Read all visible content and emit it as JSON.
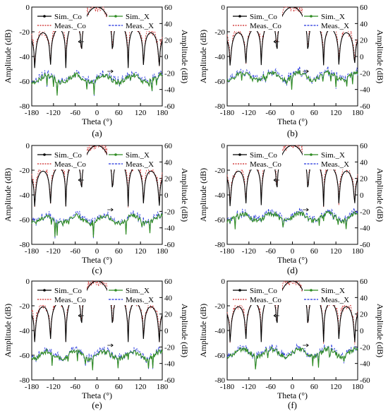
{
  "chart_data": [
    {
      "panel": "(a)",
      "type": "line",
      "xlabel": "Theta (°)",
      "ylabel_left": "Amplitude (dB)",
      "ylabel_right": "Amplitude (dB)",
      "xlim": [
        -180,
        180
      ],
      "xticks": [
        -180,
        -120,
        -60,
        0,
        60,
        120,
        180
      ],
      "ylim_left": [
        -80,
        0
      ],
      "yticks_left": [
        0,
        -20,
        -40,
        -60,
        -80
      ],
      "ylim_right": [
        -60,
        60
      ],
      "yticks_right": [
        60,
        40,
        20,
        0,
        -20,
        -40,
        -60
      ],
      "legend_left": [
        "Sim._Co",
        "Meas._Co"
      ],
      "legend_right": [
        "Sim._X",
        "Meas._X"
      ],
      "sidelobe": -38,
      "cross": -58
    },
    {
      "panel": "(b)",
      "type": "line",
      "xlabel": "Theta (°)",
      "ylabel_left": "Amplitude (dB)",
      "ylabel_right": "Amplitude (dB)",
      "xlim": [
        -180,
        180
      ],
      "xticks": [
        -180,
        -120,
        -60,
        0,
        60,
        120,
        180
      ],
      "ylim_left": [
        -80,
        0
      ],
      "yticks_left": [
        0,
        -20,
        -40,
        -60,
        -80
      ],
      "ylim_right": [
        -60,
        60
      ],
      "yticks_right": [
        60,
        40,
        20,
        0,
        -20,
        -40,
        -60
      ],
      "legend_left": [
        "Sim._Co",
        "Meas._Co"
      ],
      "legend_right": [
        "Sim._X",
        "Meas._X"
      ],
      "sidelobe": -36,
      "cross": -56
    },
    {
      "panel": "(c)",
      "type": "line",
      "xlabel": "Theta (°)",
      "ylabel_left": "Amplitude (dB)",
      "ylabel_right": "Amplitude (dB)",
      "xlim": [
        -180,
        180
      ],
      "xticks": [
        -180,
        -120,
        -60,
        0,
        60,
        120,
        180
      ],
      "ylim_left": [
        -80,
        0
      ],
      "yticks_left": [
        0,
        -20,
        -40,
        -60,
        -80
      ],
      "ylim_right": [
        -60,
        60
      ],
      "yticks_right": [
        60,
        40,
        20,
        0,
        -20,
        -40,
        -60
      ],
      "legend_left": [
        "Sim._Co",
        "Meas._Co"
      ],
      "legend_right": [
        "Sim._X",
        "Meas._X"
      ],
      "sidelobe": -40,
      "cross": -60
    },
    {
      "panel": "(d)",
      "type": "line",
      "xlabel": "Theta (°)",
      "ylabel_left": "Amplitude (dB)",
      "ylabel_right": "Amplitude (dB)",
      "xlim": [
        -180,
        180
      ],
      "xticks": [
        -180,
        -120,
        -60,
        0,
        60,
        120,
        180
      ],
      "ylim_left": [
        -80,
        0
      ],
      "yticks_left": [
        0,
        -20,
        -40,
        -60,
        -80
      ],
      "ylim_right": [
        -60,
        60
      ],
      "yticks_right": [
        60,
        40,
        20,
        0,
        -20,
        -40,
        -60
      ],
      "legend_left": [
        "Sim._Co",
        "Meas._Co"
      ],
      "legend_right": [
        "Sim._X",
        "Meas._X"
      ],
      "sidelobe": -38,
      "cross": -58
    },
    {
      "panel": "(e)",
      "type": "line",
      "xlabel": "Theta (°)",
      "ylabel_left": "Amplitude (dB)",
      "ylabel_right": "Amplitude (dB)",
      "xlim": [
        -180,
        180
      ],
      "xticks": [
        -180,
        -120,
        -60,
        0,
        60,
        120,
        180
      ],
      "ylim_left": [
        -80,
        0
      ],
      "yticks_left": [
        0,
        -20,
        -40,
        -60,
        -80
      ],
      "ylim_right": [
        -60,
        60
      ],
      "yticks_right": [
        60,
        40,
        20,
        0,
        -20,
        -40,
        -60
      ],
      "legend_left": [
        "Sim._Co",
        "Meas._Co"
      ],
      "legend_right": [
        "Sim._X",
        "Meas._X"
      ],
      "sidelobe": -40,
      "cross": -60
    },
    {
      "panel": "(f)",
      "type": "line",
      "xlabel": "Theta (°)",
      "ylabel_left": "Amplitude (dB)",
      "ylabel_right": "Amplitude (dB)",
      "xlim": [
        -180,
        180
      ],
      "xticks": [
        -180,
        -120,
        -60,
        0,
        60,
        120,
        180
      ],
      "ylim_left": [
        -80,
        0
      ],
      "yticks_left": [
        0,
        -20,
        -40,
        -60,
        -80
      ],
      "ylim_right": [
        -60,
        60
      ],
      "yticks_right": [
        60,
        40,
        20,
        0,
        -20,
        -40,
        -60
      ],
      "legend_left": [
        "Sim._Co",
        "Meas._Co"
      ],
      "legend_right": [
        "Sim._X",
        "Meas._X"
      ],
      "sidelobe": -40,
      "cross": -58
    }
  ],
  "colors": {
    "sim_co": "#000000",
    "meas_co": "#cc2222",
    "sim_x": "#2e8b22",
    "meas_x": "#2233dd"
  }
}
